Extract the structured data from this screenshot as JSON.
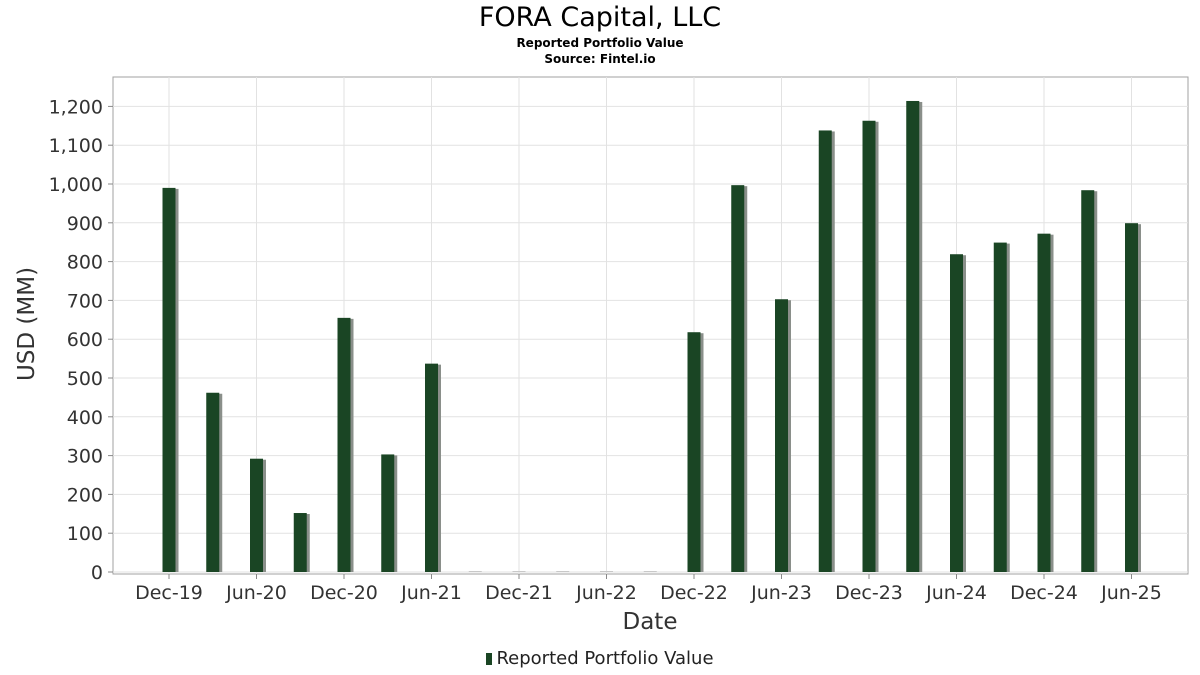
{
  "header": {
    "title": "FORA Capital, LLC",
    "subtitle": "Reported Portfolio Value",
    "source": "Source: Fintel.io"
  },
  "legend": {
    "label": "Reported Portfolio Value"
  },
  "colors": {
    "bar": "#1a4524",
    "bar_shadow": "#8a8f8a",
    "grid": "#e2e2e2",
    "plot_border": "#a0a0a0"
  },
  "chart_data": {
    "type": "bar",
    "xlabel": "Date",
    "ylabel": "USD (MM)",
    "ylim": [
      0,
      1270
    ],
    "yticks": [
      0,
      100,
      200,
      300,
      400,
      500,
      600,
      700,
      800,
      900,
      1000,
      1100,
      1200
    ],
    "ytick_labels": [
      "0",
      "100",
      "200",
      "300",
      "400",
      "500",
      "600",
      "700",
      "800",
      "900",
      "1,000",
      "1,100",
      "1,200"
    ],
    "xtick_labels": [
      "Dec-19",
      "Jun-20",
      "Dec-20",
      "Jun-21",
      "Dec-21",
      "Jun-22",
      "Dec-22",
      "Jun-23",
      "Dec-23",
      "Jun-24",
      "Dec-24",
      "Jun-25"
    ],
    "grid": true,
    "legend_position": "bottom-center",
    "series": [
      {
        "name": "Reported Portfolio Value",
        "values": [
          990,
          462,
          292,
          152,
          655,
          303,
          537,
          0,
          0,
          0,
          0,
          0,
          618,
          997,
          703,
          1138,
          1163,
          1214,
          819,
          849,
          872,
          984,
          899
        ]
      }
    ]
  }
}
